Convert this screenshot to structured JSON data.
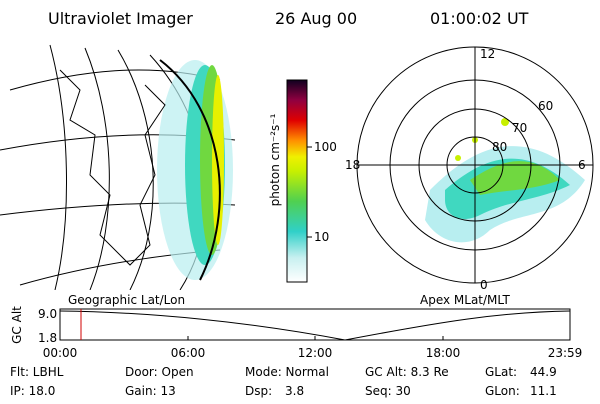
{
  "header": {
    "title": "Ultraviolet Imager",
    "date": "26 Aug 00",
    "time": "01:00:02 UT"
  },
  "colorbar": {
    "label": "photon cm⁻²s⁻¹",
    "ticks": [
      "100",
      "10"
    ]
  },
  "polar": {
    "mlt_labels": {
      "top": "12",
      "left": "18",
      "right": "6",
      "bottom": "0"
    },
    "lat_labels": [
      "60",
      "70",
      "80"
    ]
  },
  "captions": {
    "left": "Geographic Lat/Lon",
    "right": "Apex MLat/MLT"
  },
  "altitude": {
    "label": "GC Alt",
    "ticks": [
      "9.0",
      "1.8"
    ],
    "times": [
      "00:00",
      "06:00",
      "12:00",
      "18:00",
      "23:59"
    ]
  },
  "footer": {
    "flt": "Flt: LBHL",
    "ip": "IP: 18.0",
    "door": "Door: Open",
    "gain": "Gain: 13",
    "mode": "Mode: Normal",
    "dsp_label": "Dsp:",
    "dsp_value": "3.8",
    "gcalt": "GC Alt: 8.3 Re",
    "seq": "Seq: 30",
    "glat_label": "GLat:",
    "glat_value": "44.9",
    "glon_label": "GLon:",
    "glon_value": "11.1"
  }
}
